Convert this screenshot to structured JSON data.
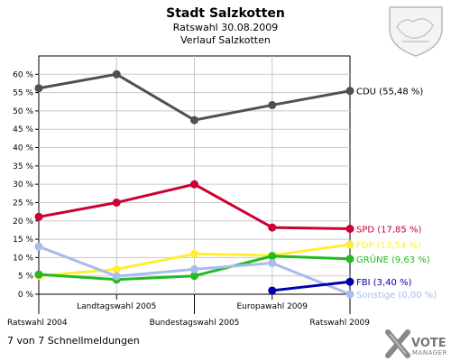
{
  "header": {
    "title": "Stadt Salzkotten",
    "subtitle1": "Ratswahl 30.08.2009",
    "subtitle2": "Verlauf Salzkotten"
  },
  "footer": {
    "text": "7 von 7 Schnellmeldungen"
  },
  "logo": {
    "text1": "VOTE",
    "text2": "MANAGER",
    "coat_icon": "coat-of-arms-icon",
    "logo_icon": "vote-manager-x-icon"
  },
  "colors": {
    "background": "#ffffff",
    "grid": "#c8c8c8",
    "axis": "#000000"
  },
  "chart_data": {
    "type": "line",
    "categories": [
      "Ratswahl 2004",
      "Landtagswahl 2005",
      "Bundestagswahl 2005",
      "Europawahl 2009",
      "Ratswahl 2009"
    ],
    "ylim": [
      0,
      65
    ],
    "yticks": [
      0,
      5,
      10,
      15,
      20,
      25,
      30,
      35,
      40,
      45,
      50,
      55,
      60
    ],
    "ytick_labels": [
      "0 %",
      "5 %",
      "10 %",
      "15 %",
      "20 %",
      "25 %",
      "30 %",
      "35 %",
      "40 %",
      "45 %",
      "50 %",
      "55 %",
      "60 %"
    ],
    "grid": true,
    "legend": "right, end labels",
    "series": [
      {
        "name": "CDU",
        "color": "#505050",
        "values": [
          56.2,
          60.0,
          47.5,
          51.6,
          55.48
        ],
        "label": "CDU (55,48 %)"
      },
      {
        "name": "SPD",
        "color": "#cc0033",
        "values": [
          21.1,
          25.0,
          30.0,
          18.2,
          17.85
        ],
        "label": "SPD (17,85 %)"
      },
      {
        "name": "FDP",
        "color": "#ffee33",
        "values": [
          5.0,
          6.8,
          11.0,
          10.6,
          13.54
        ],
        "label": "FDP (13,54 %)"
      },
      {
        "name": "GRÜNE",
        "color": "#22bb22",
        "values": [
          5.4,
          4.0,
          5.0,
          10.4,
          9.63
        ],
        "label": "GRÜNE (9,63 %)"
      },
      {
        "name": "Sonstige",
        "color": "#aabbee",
        "values": [
          13.0,
          4.9,
          6.8,
          8.5,
          0.0
        ],
        "label": "Sonstige (0,00 %)"
      },
      {
        "name": "FBI",
        "color": "#0000aa",
        "values": [
          null,
          null,
          null,
          1.0,
          3.4
        ],
        "label": "FBI (3,40 %)"
      }
    ]
  }
}
